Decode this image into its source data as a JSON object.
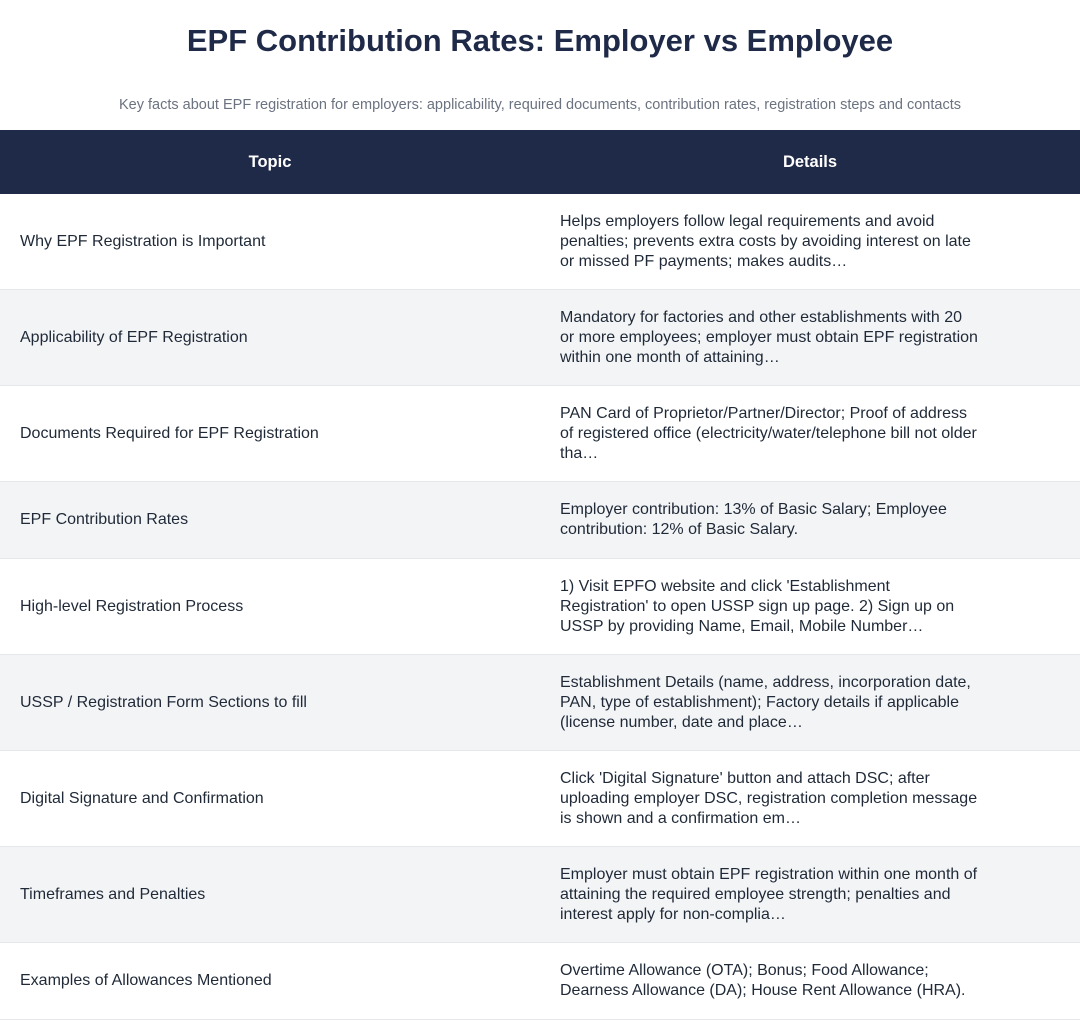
{
  "title": "EPF Contribution Rates: Employer vs Employee",
  "subtitle": "Key facts about EPF registration for employers: applicability, required documents, contribution rates, registration steps and contacts",
  "table": {
    "headers": {
      "topic": "Topic",
      "details": "Details"
    },
    "rows": [
      {
        "topic": "Why EPF Registration is Important",
        "details": "Helps employers follow legal requirements and avoid penalties; prevents extra costs by avoiding interest on late or missed PF payments; makes audits…"
      },
      {
        "topic": "Applicability of EPF Registration",
        "details": "Mandatory for factories and other establishments with 20 or more employees; employer must obtain EPF registration within one month of attaining…"
      },
      {
        "topic": "Documents Required for EPF Registration",
        "details": "PAN Card of Proprietor/Partner/Director; Proof of address of registered office (electricity/water/telephone bill not older tha…"
      },
      {
        "topic": "EPF Contribution Rates",
        "details": "Employer contribution: 13% of Basic Salary; Employee contribution: 12% of Basic Salary."
      },
      {
        "topic": "High-level Registration Process",
        "details": "1) Visit EPFO website and click 'Establishment Registration' to open USSP sign up page. 2) Sign up on USSP by providing Name, Email, Mobile Number…"
      },
      {
        "topic": "USSP / Registration Form Sections to fill",
        "details": "Establishment Details (name, address, incorporation date, PAN, type of establishment); Factory details if applicable (license number, date and place…"
      },
      {
        "topic": "Digital Signature and Confirmation",
        "details": "Click 'Digital Signature' button and attach DSC; after uploading employer DSC, registration completion message is shown and a confirmation em…"
      },
      {
        "topic": "Timeframes and Penalties",
        "details": "Employer must obtain EPF registration within one month of attaining the required employee strength; penalties and interest apply for non-complia…"
      },
      {
        "topic": "Examples of Allowances Mentioned",
        "details": "Overtime Allowance (OTA); Bonus; Food Allowance; Dearness Allowance (DA); House Rent Allowance (HRA)."
      }
    ]
  }
}
